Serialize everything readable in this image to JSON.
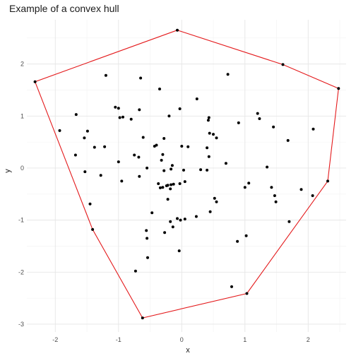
{
  "chart_data": {
    "type": "scatter",
    "title": "Example of a convex hull",
    "xlabel": "x",
    "ylabel": "y",
    "xlim": [
      -2.45,
      2.6
    ],
    "ylim": [
      -3.15,
      2.85
    ],
    "xticks": [
      -2,
      -1,
      0,
      1,
      2
    ],
    "yticks": [
      -3,
      -2,
      -1,
      0,
      1,
      2
    ],
    "grid": true,
    "legend": "none",
    "colors": {
      "points": "#000000",
      "hull": "#e41a1c",
      "grid": "#e6e6e6"
    },
    "hull": [
      {
        "x": -0.07,
        "y": 2.65
      },
      {
        "x": 1.6,
        "y": 1.99
      },
      {
        "x": 2.48,
        "y": 1.53
      },
      {
        "x": 2.31,
        "y": -0.25
      },
      {
        "x": 1.03,
        "y": -2.41
      },
      {
        "x": -0.62,
        "y": -2.88
      },
      {
        "x": -1.41,
        "y": -1.18
      },
      {
        "x": -2.32,
        "y": 1.66
      },
      {
        "x": -0.07,
        "y": 2.65
      }
    ],
    "points": [
      {
        "x": -0.07,
        "y": 2.65
      },
      {
        "x": 1.6,
        "y": 1.99
      },
      {
        "x": 2.48,
        "y": 1.53
      },
      {
        "x": -2.32,
        "y": 1.66
      },
      {
        "x": 2.31,
        "y": -0.25
      },
      {
        "x": 1.03,
        "y": -2.41
      },
      {
        "x": -0.62,
        "y": -2.88
      },
      {
        "x": -1.41,
        "y": -1.18
      },
      {
        "x": -1.2,
        "y": 1.78
      },
      {
        "x": -0.65,
        "y": 1.73
      },
      {
        "x": 0.73,
        "y": 1.8
      },
      {
        "x": -0.35,
        "y": 1.52
      },
      {
        "x": 0.24,
        "y": 1.33
      },
      {
        "x": -1.05,
        "y": 1.17
      },
      {
        "x": -1.0,
        "y": 1.15
      },
      {
        "x": -0.67,
        "y": 1.12
      },
      {
        "x": -0.93,
        "y": 0.98
      },
      {
        "x": -0.98,
        "y": 0.97
      },
      {
        "x": -0.2,
        "y": 1.0
      },
      {
        "x": -0.8,
        "y": 0.94
      },
      {
        "x": -0.03,
        "y": 1.14
      },
      {
        "x": 0.43,
        "y": 0.97
      },
      {
        "x": 0.42,
        "y": 0.92
      },
      {
        "x": 0.9,
        "y": 0.87
      },
      {
        "x": 1.2,
        "y": 1.05
      },
      {
        "x": 1.23,
        "y": 0.95
      },
      {
        "x": 1.45,
        "y": 0.79
      },
      {
        "x": 2.08,
        "y": 0.75
      },
      {
        "x": 1.68,
        "y": 0.53
      },
      {
        "x": 0.5,
        "y": 0.65
      },
      {
        "x": 0.55,
        "y": 0.58
      },
      {
        "x": 0.44,
        "y": 0.67
      },
      {
        "x": -0.28,
        "y": 0.57
      },
      {
        "x": -0.61,
        "y": 0.59
      },
      {
        "x": -1.93,
        "y": 0.72
      },
      {
        "x": -1.49,
        "y": 0.71
      },
      {
        "x": -1.54,
        "y": 0.58
      },
      {
        "x": -1.67,
        "y": 1.03
      },
      {
        "x": -1.68,
        "y": 0.25
      },
      {
        "x": -1.38,
        "y": 0.4
      },
      {
        "x": -1.22,
        "y": 0.41
      },
      {
        "x": -0.43,
        "y": 0.42
      },
      {
        "x": -0.4,
        "y": 0.44
      },
      {
        "x": 0.0,
        "y": 0.42
      },
      {
        "x": 0.1,
        "y": 0.41
      },
      {
        "x": 0.4,
        "y": 0.39
      },
      {
        "x": -0.75,
        "y": 0.25
      },
      {
        "x": -0.68,
        "y": 0.21
      },
      {
        "x": -0.3,
        "y": 0.26
      },
      {
        "x": 0.43,
        "y": 0.22
      },
      {
        "x": -1.0,
        "y": 0.12
      },
      {
        "x": -0.32,
        "y": 0.15
      },
      {
        "x": 0.7,
        "y": 0.09
      },
      {
        "x": -0.15,
        "y": 0.05
      },
      {
        "x": -0.55,
        "y": 0.0
      },
      {
        "x": -0.28,
        "y": -0.05
      },
      {
        "x": -0.17,
        "y": -0.02
      },
      {
        "x": 0.03,
        "y": -0.04
      },
      {
        "x": 0.3,
        "y": -0.03
      },
      {
        "x": 0.4,
        "y": -0.04
      },
      {
        "x": 1.35,
        "y": 0.02
      },
      {
        "x": -1.53,
        "y": -0.07
      },
      {
        "x": -1.28,
        "y": -0.14
      },
      {
        "x": -0.67,
        "y": -0.16
      },
      {
        "x": -0.95,
        "y": -0.25
      },
      {
        "x": -0.37,
        "y": -0.3
      },
      {
        "x": -0.3,
        "y": -0.37
      },
      {
        "x": -0.24,
        "y": -0.34
      },
      {
        "x": -0.22,
        "y": -0.33
      },
      {
        "x": -0.17,
        "y": -0.32
      },
      {
        "x": -0.13,
        "y": -0.31
      },
      {
        "x": -0.03,
        "y": -0.3
      },
      {
        "x": 0.05,
        "y": -0.26
      },
      {
        "x": -0.18,
        "y": -0.4
      },
      {
        "x": -0.34,
        "y": -0.38
      },
      {
        "x": -0.22,
        "y": -0.6
      },
      {
        "x": 0.52,
        "y": -0.58
      },
      {
        "x": 0.55,
        "y": -0.65
      },
      {
        "x": 1.0,
        "y": -0.37
      },
      {
        "x": 1.06,
        "y": -0.29
      },
      {
        "x": 1.42,
        "y": -0.37
      },
      {
        "x": 1.47,
        "y": -0.53
      },
      {
        "x": 1.49,
        "y": -0.65
      },
      {
        "x": 1.89,
        "y": -0.41
      },
      {
        "x": 2.07,
        "y": -0.53
      },
      {
        "x": -1.45,
        "y": -0.69
      },
      {
        "x": 0.45,
        "y": -0.84
      },
      {
        "x": -0.47,
        "y": -0.86
      },
      {
        "x": -0.07,
        "y": -0.97
      },
      {
        "x": -0.02,
        "y": -1.0
      },
      {
        "x": 0.05,
        "y": -0.98
      },
      {
        "x": 0.23,
        "y": -0.93
      },
      {
        "x": -0.18,
        "y": -1.03
      },
      {
        "x": 1.7,
        "y": -1.03
      },
      {
        "x": -0.56,
        "y": -1.2
      },
      {
        "x": -0.27,
        "y": -1.24
      },
      {
        "x": -0.14,
        "y": -1.13
      },
      {
        "x": 1.02,
        "y": -1.3
      },
      {
        "x": -0.55,
        "y": -1.35
      },
      {
        "x": 0.88,
        "y": -1.41
      },
      {
        "x": -0.04,
        "y": -1.59
      },
      {
        "x": -0.54,
        "y": -1.72
      },
      {
        "x": -0.73,
        "y": -1.98
      },
      {
        "x": 0.79,
        "y": -2.28
      }
    ]
  }
}
